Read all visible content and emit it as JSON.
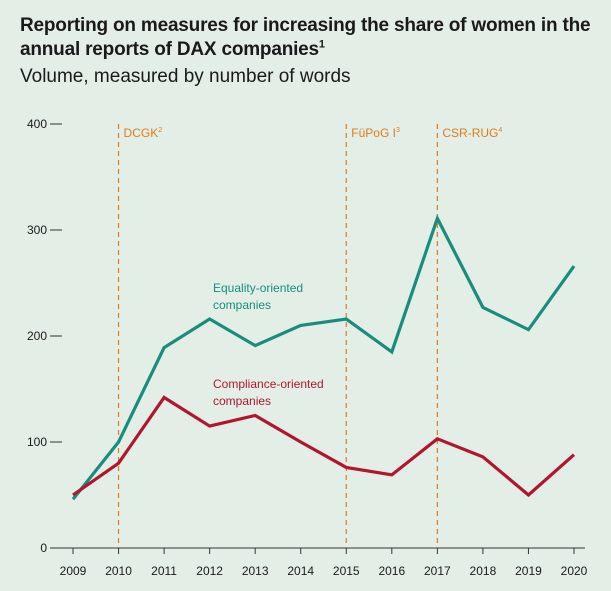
{
  "title": "Reporting on measures for increasing the share of women in the annual reports of DAX companies",
  "title_note": "1",
  "subtitle": "Volume, measured by number of words",
  "colors": {
    "background": "#e3efe6",
    "equality": "#1a8c7e",
    "compliance": "#b3152f",
    "event_line": "#e07a1f",
    "axis": "#333333"
  },
  "chart_data": {
    "type": "line",
    "x": [
      2009,
      2010,
      2011,
      2012,
      2013,
      2014,
      2015,
      2016,
      2017,
      2018,
      2019,
      2020
    ],
    "ylim": [
      0,
      400
    ],
    "yticks": [
      0,
      100,
      200,
      300,
      400
    ],
    "series": [
      {
        "name": "Equality-oriented companies",
        "label_lines": [
          "Equality-oriented",
          "companies"
        ],
        "color": "#1a8c7e",
        "values": [
          46,
          100,
          189,
          216,
          191,
          210,
          216,
          185,
          311,
          227,
          206,
          266
        ]
      },
      {
        "name": "Compliance-oriented companies",
        "label_lines": [
          "Compliance-oriented",
          "companies"
        ],
        "color": "#b3152f",
        "values": [
          50,
          80,
          142,
          115,
          125,
          100,
          76,
          69,
          103,
          86,
          50,
          88
        ]
      }
    ],
    "events": [
      {
        "x": 2010,
        "label": "DCGK",
        "note": "2"
      },
      {
        "x": 2015,
        "label": "FüPoG I",
        "note": "3"
      },
      {
        "x": 2017,
        "label": "CSR-RUG",
        "note": "4"
      }
    ]
  }
}
